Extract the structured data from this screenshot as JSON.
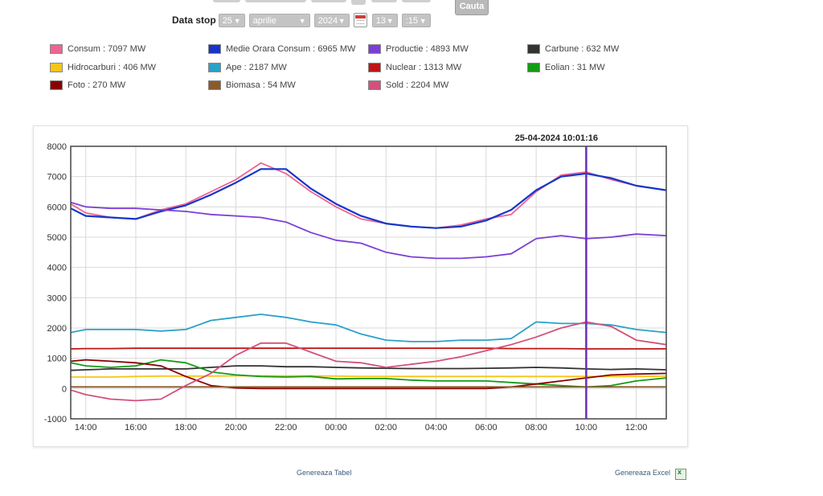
{
  "search_button": "Cauta",
  "stop_row": {
    "label": "Data stop",
    "day": "25",
    "month": "aprilie",
    "year": "2024",
    "hour": "13",
    "minute": ":15"
  },
  "legend": [
    {
      "label": "Consum : 7097 MW",
      "color": "#f06292"
    },
    {
      "label": "Medie Orara Consum : 6965 MW",
      "color": "#1536c8"
    },
    {
      "label": "Productie : 4893 MW",
      "color": "#7b3fd6"
    },
    {
      "label": "Carbune : 632 MW",
      "color": "#333333"
    },
    {
      "label": "Hidrocarburi : 406 MW",
      "color": "#f5c518"
    },
    {
      "label": "Ape : 2187 MW",
      "color": "#2aa1c9"
    },
    {
      "label": "Nuclear : 1313 MW",
      "color": "#c01515"
    },
    {
      "label": "Eolian : 31 MW",
      "color": "#169a16"
    },
    {
      "label": "Foto : 270 MW",
      "color": "#8b0000"
    },
    {
      "label": "Biomasa : 54 MW",
      "color": "#8b5a2b"
    },
    {
      "label": "Sold : 2204 MW",
      "color": "#d4507a"
    }
  ],
  "chart_data": {
    "type": "line",
    "title": "25-04-2024 10:01:16",
    "ylim": [
      -1000,
      8000
    ],
    "yticks": [
      "-1000",
      "0",
      "1000",
      "2000",
      "3000",
      "4000",
      "5000",
      "6000",
      "7000",
      "8000"
    ],
    "xticks": [
      "14:00",
      "16:00",
      "18:00",
      "20:00",
      "22:00",
      "00:00",
      "02:00",
      "04:00",
      "06:00",
      "08:00",
      "10:00",
      "12:00"
    ],
    "x_hours": [
      13.4,
      14,
      15,
      16,
      17,
      18,
      19,
      20,
      21,
      22,
      23,
      24,
      25,
      26,
      27,
      28,
      29,
      30,
      31,
      32,
      33,
      34,
      35,
      36,
      37.2
    ],
    "marker_hour": 34.0,
    "series": [
      {
        "name": "Consum",
        "color": "#f06292",
        "values": [
          6100,
          5800,
          5650,
          5600,
          5900,
          6100,
          6500,
          6900,
          7450,
          7100,
          6500,
          6000,
          5600,
          5450,
          5350,
          5300,
          5400,
          5600,
          5750,
          6500,
          7050,
          7150,
          6900,
          6700,
          6550
        ]
      },
      {
        "name": "Medie Orara Consum",
        "color": "#1536c8",
        "values": [
          5950,
          5700,
          5650,
          5600,
          5850,
          6050,
          6400,
          6800,
          7250,
          7250,
          6600,
          6100,
          5700,
          5450,
          5350,
          5300,
          5350,
          5550,
          5900,
          6550,
          7000,
          7100,
          6950,
          6700,
          6550
        ]
      },
      {
        "name": "Productie",
        "color": "#7b3fd6",
        "values": [
          6150,
          6000,
          5950,
          5950,
          5900,
          5850,
          5750,
          5700,
          5650,
          5500,
          5150,
          4900,
          4800,
          4500,
          4350,
          4300,
          4300,
          4350,
          4450,
          4950,
          5050,
          4950,
          5000,
          5100,
          5050
        ]
      },
      {
        "name": "Carbune",
        "color": "#333333",
        "values": [
          600,
          620,
          650,
          650,
          650,
          650,
          700,
          750,
          750,
          720,
          720,
          700,
          680,
          670,
          660,
          660,
          660,
          670,
          680,
          700,
          680,
          650,
          630,
          650,
          620
        ]
      },
      {
        "name": "Hidrocarburi",
        "color": "#f5c518",
        "values": [
          380,
          380,
          380,
          400,
          410,
          410,
          410,
          420,
          420,
          420,
          420,
          410,
          400,
          400,
          400,
          400,
          400,
          400,
          400,
          400,
          400,
          400,
          400,
          400,
          410
        ]
      },
      {
        "name": "Ape",
        "color": "#2aa1c9",
        "values": [
          1850,
          1950,
          1950,
          1950,
          1900,
          1950,
          2250,
          2350,
          2450,
          2350,
          2200,
          2100,
          1800,
          1600,
          1550,
          1550,
          1600,
          1600,
          1650,
          2200,
          2150,
          2150,
          2100,
          1950,
          1850
        ]
      },
      {
        "name": "Nuclear",
        "color": "#c01515",
        "values": [
          1310,
          1320,
          1320,
          1330,
          1330,
          1330,
          1330,
          1330,
          1330,
          1330,
          1330,
          1330,
          1330,
          1330,
          1330,
          1330,
          1330,
          1330,
          1320,
          1320,
          1320,
          1310,
          1310,
          1310,
          1313
        ]
      },
      {
        "name": "Eolian",
        "color": "#169a16",
        "values": [
          850,
          750,
          700,
          750,
          950,
          850,
          550,
          450,
          400,
          380,
          400,
          320,
          330,
          330,
          280,
          250,
          250,
          250,
          200,
          150,
          100,
          50,
          100,
          250,
          350
        ]
      },
      {
        "name": "Foto",
        "color": "#8b0000",
        "values": [
          900,
          950,
          900,
          850,
          750,
          400,
          100,
          20,
          0,
          0,
          0,
          0,
          0,
          0,
          0,
          0,
          0,
          0,
          50,
          150,
          250,
          350,
          450,
          480,
          500
        ]
      },
      {
        "name": "Biomasa",
        "color": "#8b5a2b",
        "values": [
          54,
          54,
          54,
          54,
          54,
          54,
          54,
          54,
          54,
          54,
          54,
          54,
          54,
          54,
          54,
          54,
          54,
          54,
          54,
          54,
          54,
          54,
          54,
          54,
          54
        ]
      },
      {
        "name": "Sold",
        "color": "#d4507a",
        "values": [
          -50,
          -200,
          -350,
          -400,
          -350,
          100,
          500,
          1100,
          1500,
          1500,
          1200,
          900,
          850,
          700,
          800,
          900,
          1050,
          1250,
          1450,
          1700,
          2000,
          2200,
          2050,
          1600,
          1450
        ]
      }
    ]
  },
  "footer": {
    "table_link": "Genereaza Tabel",
    "excel_link": "Genereaza Excel"
  }
}
